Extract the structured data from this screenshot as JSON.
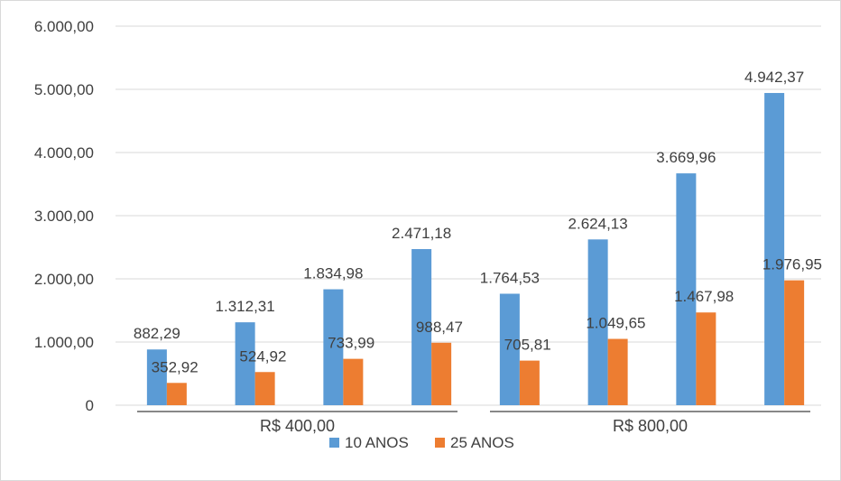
{
  "chart_data": {
    "type": "bar",
    "groups": [
      {
        "label": "R$ 400,00",
        "bar_count": 4
      },
      {
        "label": "R$ 800,00",
        "bar_count": 4
      }
    ],
    "series": [
      {
        "name": "10 ANOS",
        "color": "#5B9BD5",
        "values": [
          882.29,
          1312.31,
          1834.98,
          2471.18,
          1764.53,
          2624.13,
          3669.96,
          4942.37
        ],
        "labels": [
          "882,29",
          "1.312,31",
          "1.834,98",
          "2.471,18",
          "1.764,53",
          "2.624,13",
          "3.669,96",
          "4.942,37"
        ]
      },
      {
        "name": "25 ANOS",
        "color": "#ED7D31",
        "values": [
          352.92,
          524.92,
          733.99,
          988.47,
          705.81,
          1049.65,
          1467.98,
          1976.95
        ],
        "labels": [
          "352,92",
          "524,92",
          "733,99",
          "988,47",
          "705,81",
          "1.049,65",
          "1.467,98",
          "1.976,95"
        ]
      }
    ],
    "ylim": [
      0,
      6000
    ],
    "yticks": [
      {
        "value": 0,
        "label": "0"
      },
      {
        "value": 1000,
        "label": "1.000,00"
      },
      {
        "value": 2000,
        "label": "2.000,00"
      },
      {
        "value": 3000,
        "label": "3.000,00"
      },
      {
        "value": 4000,
        "label": "4.000,00"
      },
      {
        "value": 5000,
        "label": "5.000,00"
      },
      {
        "value": 6000,
        "label": "6.000,00"
      }
    ],
    "grid": true,
    "legend_position": "bottom",
    "title": "",
    "xlabel": "",
    "ylabel": ""
  }
}
